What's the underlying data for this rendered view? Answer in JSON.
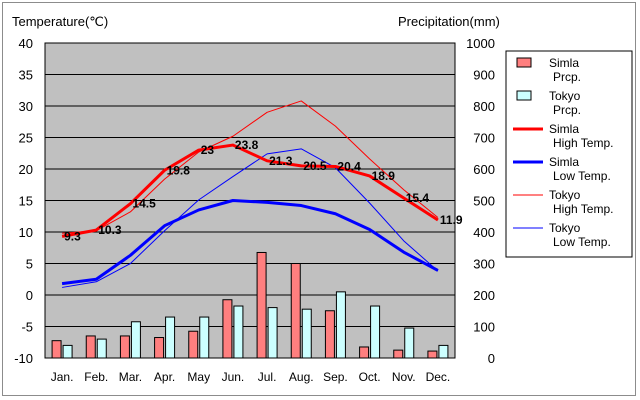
{
  "chart_data": {
    "type": "bar",
    "left_axis_title": "Temperature(℃)",
    "right_axis_title": "Precipitation(mm)",
    "categories": [
      "Jan.",
      "Feb.",
      "Mar.",
      "Apr.",
      "May",
      "Jun.",
      "Jul.",
      "Aug.",
      "Sep.",
      "Oct.",
      "Nov.",
      "Dec."
    ],
    "temp_axis": {
      "min": -10,
      "max": 40,
      "step": 5,
      "ticks": [
        "40",
        "35",
        "30",
        "25",
        "20",
        "15",
        "10",
        "5",
        "0",
        "-5",
        "-10"
      ]
    },
    "prcp_axis": {
      "min": 0,
      "max": 1000,
      "step": 100,
      "ticks": [
        "1000",
        "900",
        "800",
        "700",
        "600",
        "500",
        "400",
        "300",
        "200",
        "100",
        "0"
      ]
    },
    "grid": true,
    "legend_position": "right",
    "bar_series": [
      {
        "name_lines": [
          "Simla",
          "Prcp."
        ],
        "color": "#ff7f7f",
        "values": [
          55,
          70,
          70,
          65,
          85,
          185,
          335,
          300,
          150,
          35,
          25,
          22
        ]
      },
      {
        "name_lines": [
          "Tokyo",
          "Prcp."
        ],
        "color": "#ccffff",
        "values": [
          40,
          60,
          115,
          130,
          130,
          165,
          160,
          155,
          210,
          165,
          95,
          40
        ]
      }
    ],
    "line_series": [
      {
        "name_lines": [
          "Simla",
          "High Temp."
        ],
        "color": "#ff0000",
        "width": 3,
        "values": [
          9.3,
          10.3,
          14.5,
          19.8,
          23,
          23.8,
          21.3,
          20.5,
          20.4,
          18.9,
          15.4,
          11.9
        ],
        "labels": [
          "9.3",
          "10.3",
          "14.5",
          "19.8",
          "23",
          "23.8",
          "21.3",
          "20.5",
          "20.4",
          "18.9",
          "15.4",
          "11.9"
        ]
      },
      {
        "name_lines": [
          "Simla",
          "Low Temp."
        ],
        "color": "#0000ff",
        "width": 3,
        "values": [
          1.8,
          2.5,
          6.3,
          11,
          13.5,
          15,
          14.7,
          14.2,
          12.9,
          10.4,
          6.8,
          3.9
        ]
      },
      {
        "name_lines": [
          "Tokyo",
          "High Temp."
        ],
        "color": "#ff0000",
        "width": 1,
        "values": [
          9.8,
          10.2,
          13.2,
          18.4,
          22.7,
          25.2,
          29,
          30.8,
          26.8,
          21.6,
          16.7,
          12.3
        ]
      },
      {
        "name_lines": [
          "Tokyo",
          "Low Temp."
        ],
        "color": "#0000ff",
        "width": 1,
        "values": [
          1.2,
          2.1,
          5,
          10.2,
          15.1,
          18.8,
          22.4,
          23.2,
          20.2,
          14.6,
          8.6,
          3.8
        ]
      }
    ],
    "colors": {
      "plot_bg": "#c0c0c0",
      "grid": "#000000"
    }
  }
}
